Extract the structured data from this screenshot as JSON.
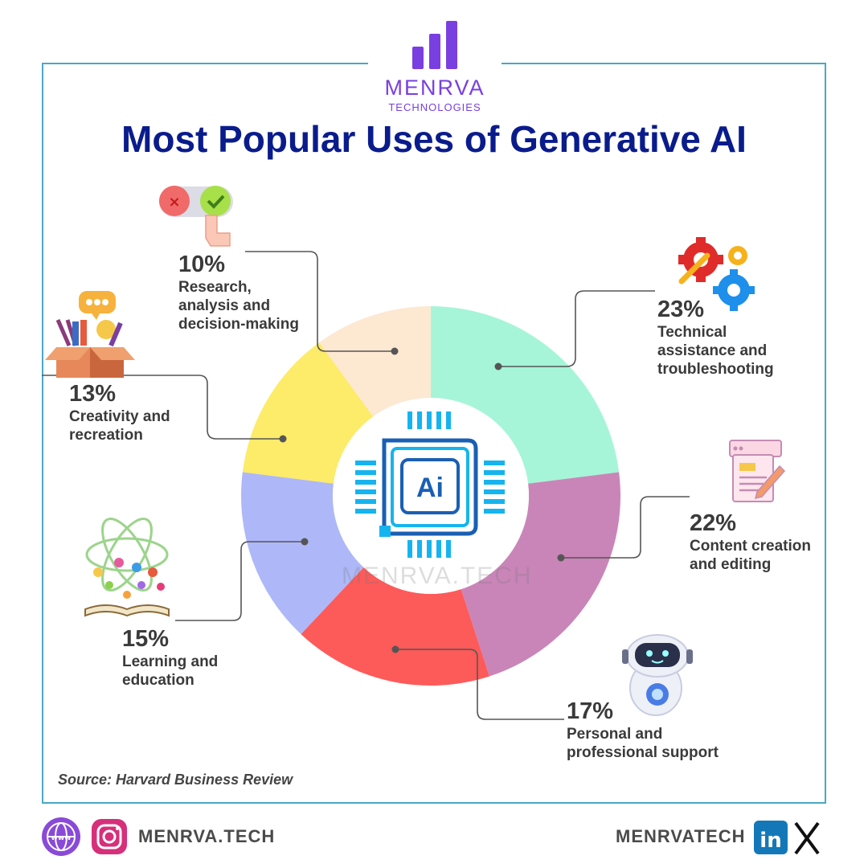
{
  "brand": {
    "name": "MENRVA",
    "sub": "TECHNOLOGIES",
    "color": "#7a3fe0"
  },
  "title": "Most Popular Uses of Generative AI",
  "center_badge": "Ai",
  "watermark": "MENRVA.TECH",
  "source": "Source: Harvard Business Review",
  "chart_data": {
    "type": "pie",
    "title": "Most Popular Uses of Generative AI",
    "slices": [
      {
        "label": "Technical assistance and troubleshooting",
        "value": 23,
        "pct_text": "23%",
        "color": "#a6f5d8"
      },
      {
        "label": "Content creation and editing",
        "value": 22,
        "pct_text": "22%",
        "color": "#c985b8"
      },
      {
        "label": "Personal and professional support",
        "value": 17,
        "pct_text": "17%",
        "color": "#fd5a5a"
      },
      {
        "label": "Learning and education",
        "value": 15,
        "pct_text": "15%",
        "color": "#aeb8f8"
      },
      {
        "label": "Creativity and recreation",
        "value": 13,
        "pct_text": "13%",
        "color": "#fdeb6a"
      },
      {
        "label": "Research, analysis and decision-making",
        "value": 10,
        "pct_text": "10%",
        "color": "#fde8d2"
      }
    ]
  },
  "labels": {
    "research": {
      "pct": "10%",
      "l1": "Research,",
      "l2": "analysis and",
      "l3": "decision-making"
    },
    "technical": {
      "pct": "23%",
      "l1": "Technical",
      "l2": "assistance and",
      "l3": "troubleshooting"
    },
    "creativity": {
      "pct": "13%",
      "l1": "Creativity and",
      "l2": "recreation"
    },
    "content": {
      "pct": "22%",
      "l1": "Content creation",
      "l2": "and editing"
    },
    "learning": {
      "pct": "15%",
      "l1": "Learning and",
      "l2": "education"
    },
    "personal": {
      "pct": "17%",
      "l1": "Personal and",
      "l2": "professional support"
    }
  },
  "footer": {
    "left_text": "MENRVA.TECH",
    "right_text": "MENRVATECH",
    "icons": [
      "globe-icon",
      "instagram-icon",
      "linkedin-icon",
      "x-icon"
    ]
  }
}
